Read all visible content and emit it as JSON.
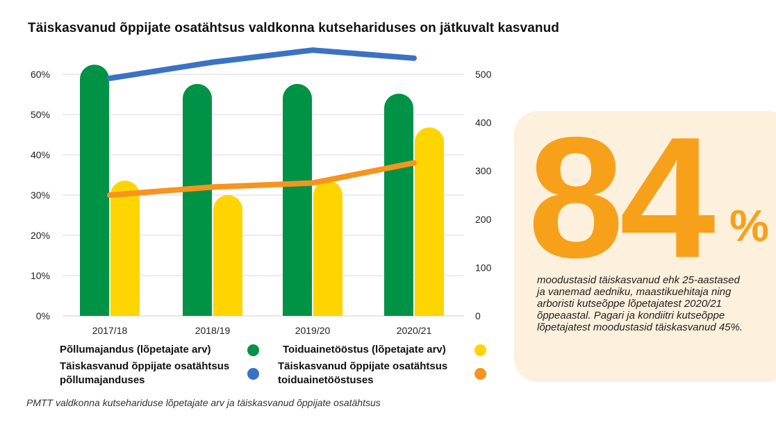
{
  "title": "Täiskasvanud õppijate osatähtsus valdkonna kutsehariduses on jätkuvalt kasvanud",
  "caption": "PMTT valdkonna kutsehariduse lõpetajate arv ja täiskasvanud õppijate osatähtsus",
  "chart_data": {
    "type": "bar",
    "categories": [
      "2017/18",
      "2018/19",
      "2019/20",
      "2020/21"
    ],
    "y_left": {
      "ticks": [
        "0%",
        "10%",
        "20%",
        "30%",
        "40%",
        "50%",
        "60%"
      ],
      "ylim": [
        0,
        60
      ]
    },
    "y_right": {
      "ticks": [
        "0",
        "100",
        "200",
        "300",
        "400",
        "500"
      ],
      "ylim": [
        0,
        500
      ]
    },
    "series": [
      {
        "name": "Põllumajandus  (lõpetajate arv)",
        "type": "bar",
        "axis": "right",
        "color": "#009245",
        "values": [
          520,
          480,
          480,
          460
        ]
      },
      {
        "name": "Toiduainetööstus (lõpetajate arv)",
        "type": "bar",
        "axis": "right",
        "color": "#ffd500",
        "values": [
          280,
          250,
          280,
          390
        ]
      },
      {
        "name": "Täiskasvanud õppijate osatähtsus põllumajanduses",
        "type": "line",
        "axis": "left",
        "color": "#3a73c4",
        "values": [
          59,
          63,
          66,
          64
        ]
      },
      {
        "name": "Täiskasvanud õppijate osatähtsus toiduainetööstuses",
        "type": "line",
        "axis": "left",
        "color": "#f7941d",
        "values": [
          30,
          32,
          33,
          38
        ]
      }
    ],
    "grid": true
  },
  "legend": [
    {
      "label": "Põllumajandus  (lõpetajate arv)",
      "color": "#009245"
    },
    {
      "label": "Toiduainetööstus (lõpetajate arv)",
      "color": "#ffd500"
    },
    {
      "label": "Täiskasvanud õppijate osatähtsus põllumajanduses",
      "color": "#3a73c4"
    },
    {
      "label": "Täiskasvanud õppijate osatähtsus toiduainetööstuses",
      "color": "#f7941d"
    }
  ],
  "callout": {
    "number": "84",
    "percent": "%",
    "text": "moodustasid  täiskasvanud ehk 25-aastased ja vanemad aedniku, maastikuehitaja ning arboristi kutseõppe lõpetajatest 2020/21 õppeaastal. Pagari ja kondiitri kutseõppe lõpetajatest moodustasid täiskasvanud 45%.",
    "color": "#f7a11a",
    "background": "#fdf0dc"
  }
}
